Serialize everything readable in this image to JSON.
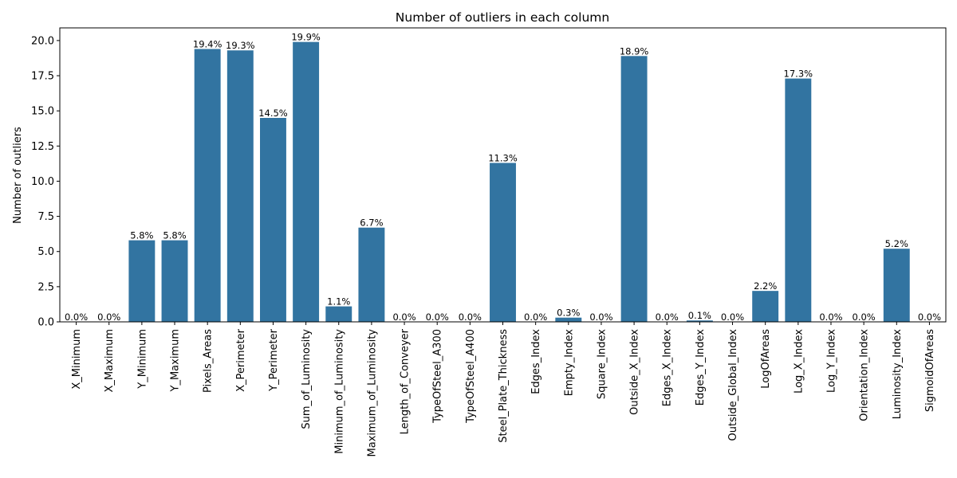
{
  "chart_data": {
    "type": "bar",
    "title": "Number of outliers in each column",
    "xlabel": "",
    "ylabel": "Number of outliers",
    "ylim": [
      0,
      20.9
    ],
    "yticks": [
      0.0,
      2.5,
      5.0,
      7.5,
      10.0,
      12.5,
      15.0,
      17.5,
      20.0
    ],
    "ytick_labels": [
      "0.0",
      "2.5",
      "5.0",
      "7.5",
      "10.0",
      "12.5",
      "15.0",
      "17.5",
      "20.0"
    ],
    "grid": false,
    "color": "#3274a1",
    "categories": [
      "X_Minimum",
      "X_Maximum",
      "Y_Minimum",
      "Y_Maximum",
      "Pixels_Areas",
      "X_Perimeter",
      "Y_Perimeter",
      "Sum_of_Luminosity",
      "Minimum_of_Luminosity",
      "Maximum_of_Luminosity",
      "Length_of_Conveyer",
      "TypeOfSteel_A300",
      "TypeOfSteel_A400",
      "Steel_Plate_Thickness",
      "Edges_Index",
      "Empty_Index",
      "Square_Index",
      "Outside_X_Index",
      "Edges_X_Index",
      "Edges_Y_Index",
      "Outside_Global_Index",
      "LogOfAreas",
      "Log_X_Index",
      "Log_Y_Index",
      "Orientation_Index",
      "Luminosity_Index",
      "SigmoidOfAreas"
    ],
    "values": [
      0.0,
      0.0,
      5.8,
      5.8,
      19.4,
      19.3,
      14.5,
      19.9,
      1.1,
      6.7,
      0.0,
      0.0,
      0.0,
      11.3,
      0.0,
      0.3,
      0.0,
      18.9,
      0.0,
      0.1,
      0.0,
      2.2,
      17.3,
      0.0,
      0.0,
      5.2,
      0.0
    ],
    "labels": [
      "0.0%",
      "0.0%",
      "5.8%",
      "5.8%",
      "19.4%",
      "19.3%",
      "14.5%",
      "19.9%",
      "1.1%",
      "6.7%",
      "0.0%",
      "0.0%",
      "0.0%",
      "11.3%",
      "0.0%",
      "0.3%",
      "0.0%",
      "18.9%",
      "0.0%",
      "0.1%",
      "0.0%",
      "2.2%",
      "17.3%",
      "0.0%",
      "0.0%",
      "5.2%",
      "0.0%"
    ]
  }
}
